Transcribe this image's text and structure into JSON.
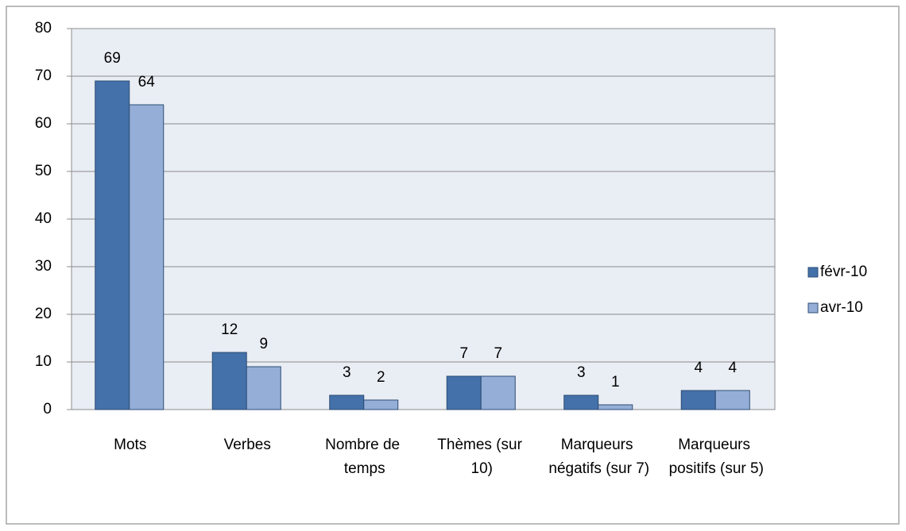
{
  "chart_data": {
    "type": "bar",
    "categories": [
      "Mots",
      "Verbes",
      "Nombre de temps",
      "Thèmes (sur 10)",
      "Marqueurs négatifs (sur 7)",
      "Marqueurs positifs (sur 5)"
    ],
    "series": [
      {
        "name": "févr-10",
        "color": "#4471a9",
        "values": [
          69,
          12,
          3,
          7,
          3,
          4
        ]
      },
      {
        "name": "avr-10",
        "color": "#94aed7",
        "values": [
          64,
          9,
          2,
          7,
          1,
          4
        ]
      }
    ],
    "ylim": [
      0,
      80
    ],
    "yticks": [
      0,
      10,
      20,
      30,
      40,
      50,
      60,
      70,
      80
    ],
    "grid": true,
    "legend": "right"
  }
}
